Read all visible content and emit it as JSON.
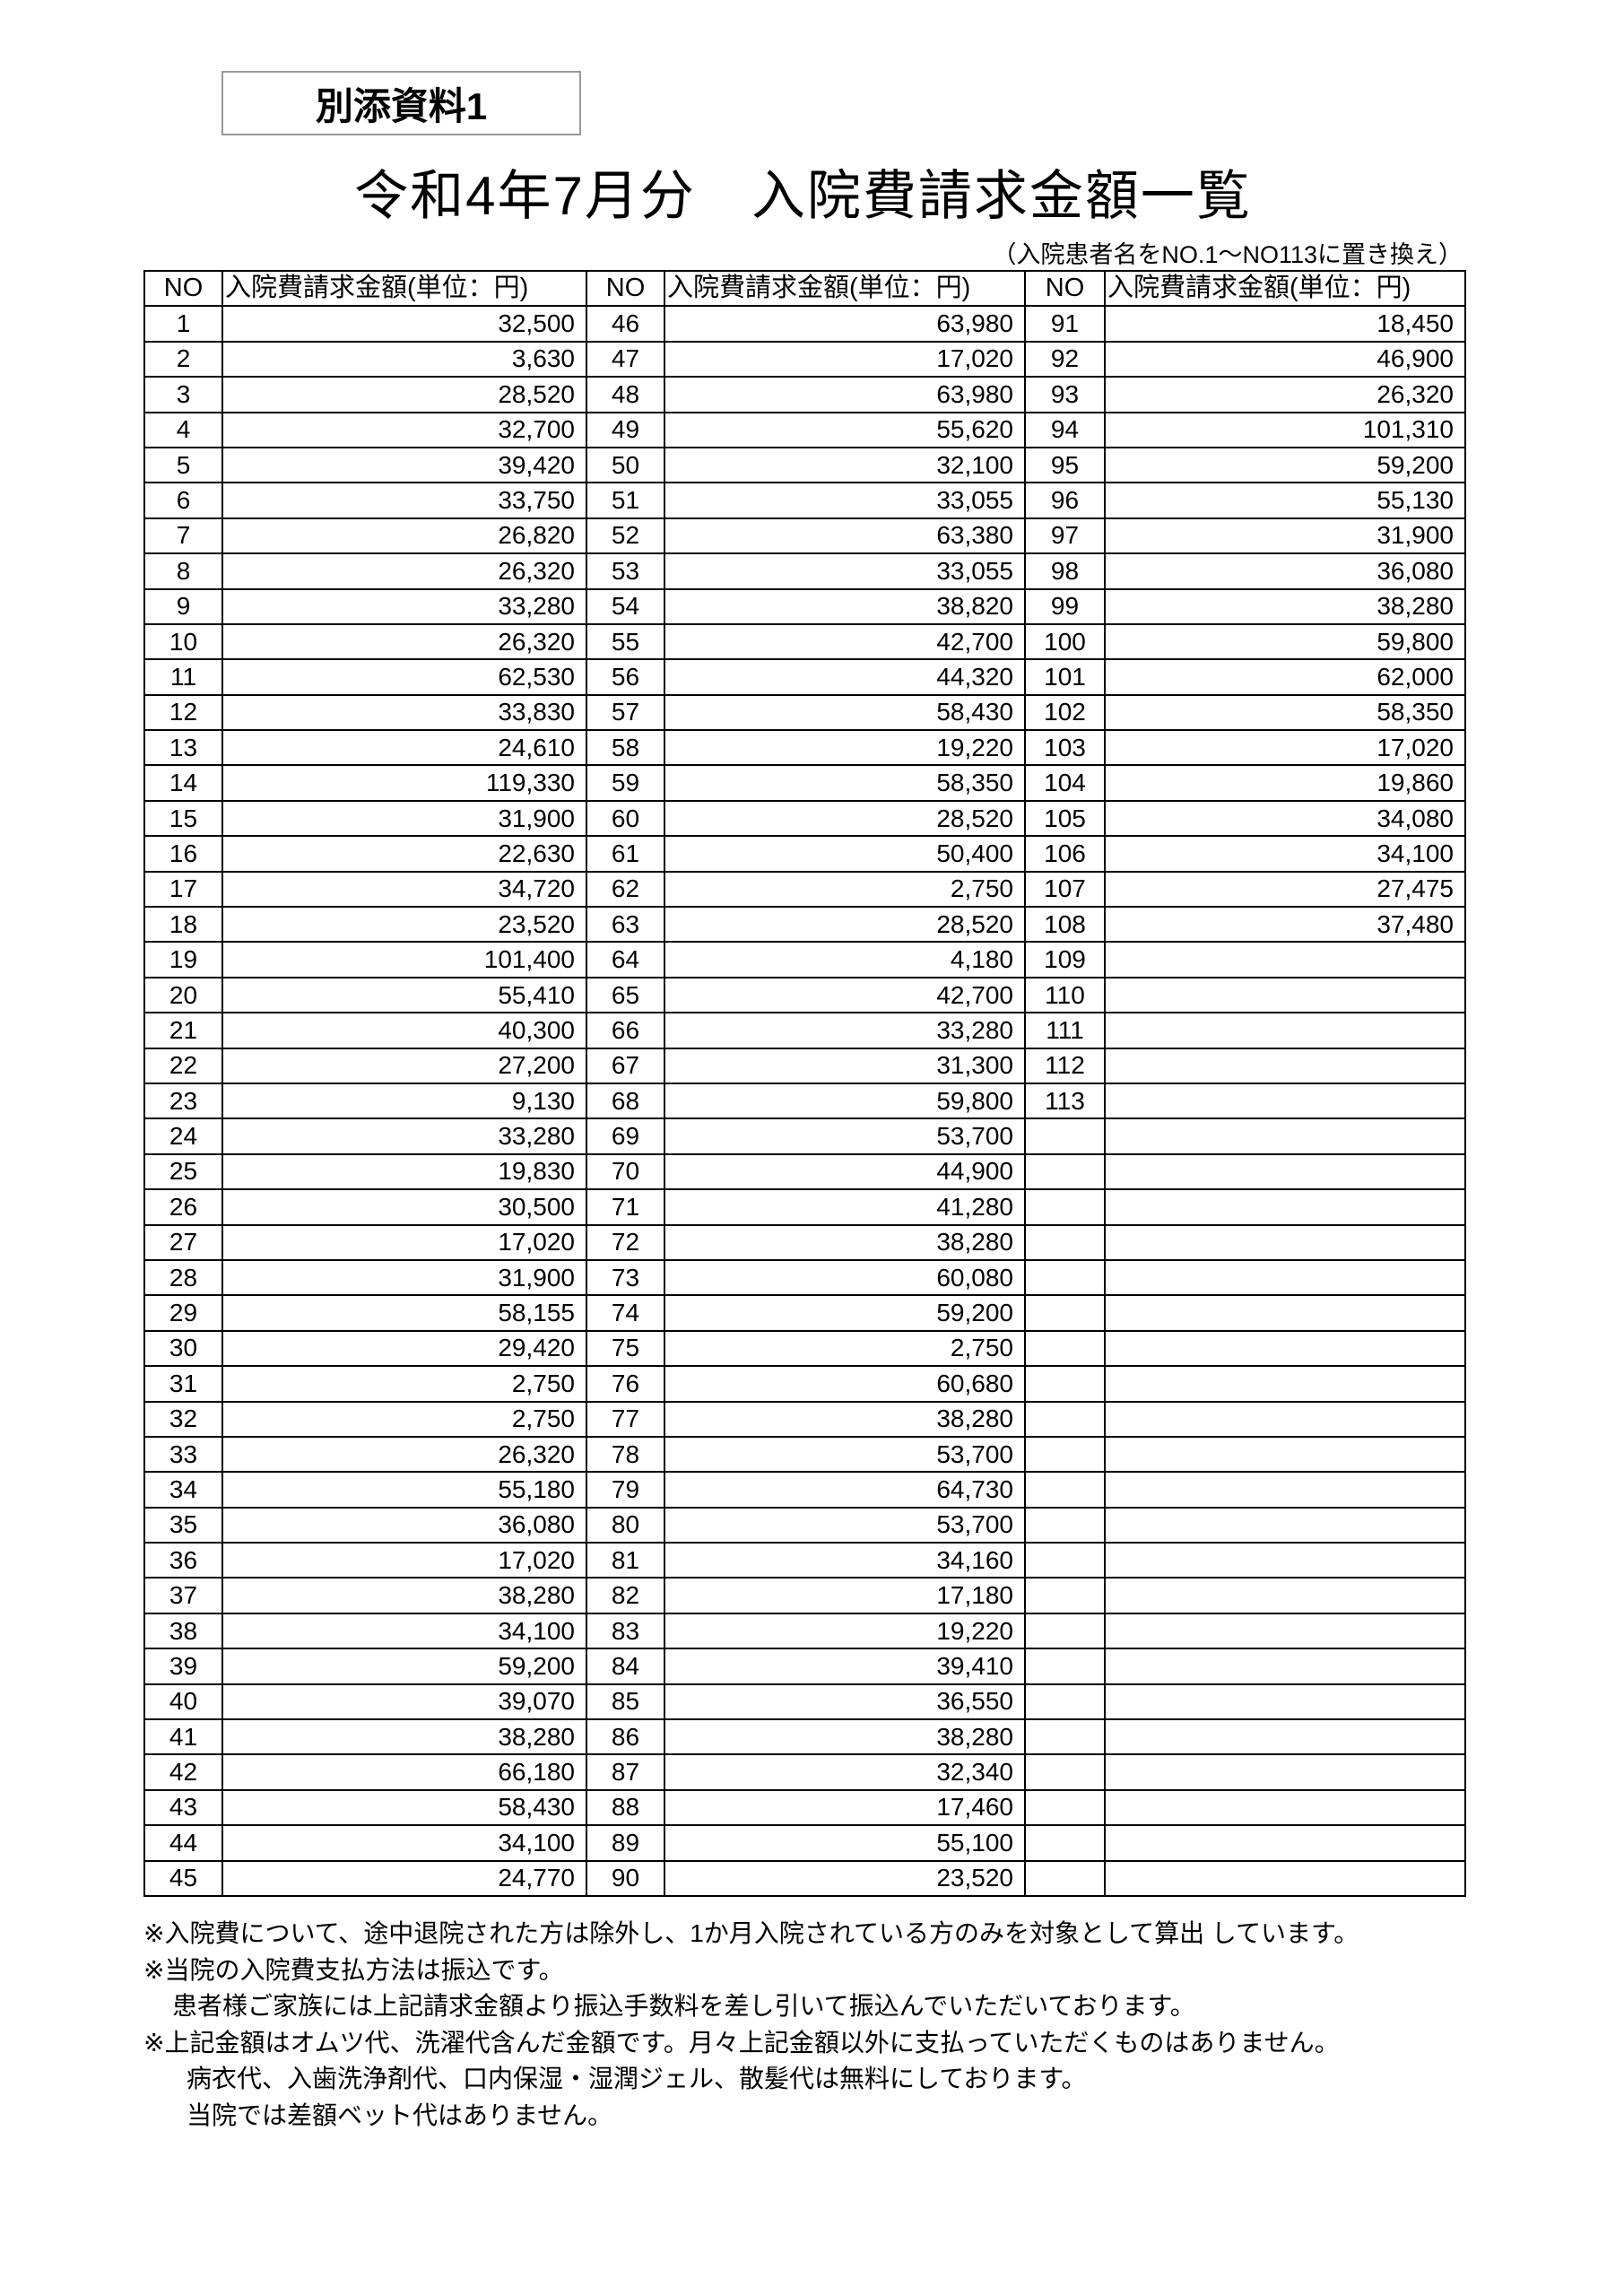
{
  "badge": "別添資料1",
  "title": "令和4年7月分　入院費請求金額一覧",
  "subtitle": "（入院患者名をNO.1～NO113に置き換え）",
  "table": {
    "headers": [
      "NO",
      "入院費請求金額(単位：円)",
      "NO",
      "入院費請求金額(単位：円)",
      "NO",
      "入院費請求金額(単位：円)"
    ],
    "rows": [
      [
        "1",
        "32,500",
        "46",
        "63,980",
        "91",
        "18,450"
      ],
      [
        "2",
        "3,630",
        "47",
        "17,020",
        "92",
        "46,900"
      ],
      [
        "3",
        "28,520",
        "48",
        "63,980",
        "93",
        "26,320"
      ],
      [
        "4",
        "32,700",
        "49",
        "55,620",
        "94",
        "101,310"
      ],
      [
        "5",
        "39,420",
        "50",
        "32,100",
        "95",
        "59,200"
      ],
      [
        "6",
        "33,750",
        "51",
        "33,055",
        "96",
        "55,130"
      ],
      [
        "7",
        "26,820",
        "52",
        "63,380",
        "97",
        "31,900"
      ],
      [
        "8",
        "26,320",
        "53",
        "33,055",
        "98",
        "36,080"
      ],
      [
        "9",
        "33,280",
        "54",
        "38,820",
        "99",
        "38,280"
      ],
      [
        "10",
        "26,320",
        "55",
        "42,700",
        "100",
        "59,800"
      ],
      [
        "11",
        "62,530",
        "56",
        "44,320",
        "101",
        "62,000"
      ],
      [
        "12",
        "33,830",
        "57",
        "58,430",
        "102",
        "58,350"
      ],
      [
        "13",
        "24,610",
        "58",
        "19,220",
        "103",
        "17,020"
      ],
      [
        "14",
        "119,330",
        "59",
        "58,350",
        "104",
        "19,860"
      ],
      [
        "15",
        "31,900",
        "60",
        "28,520",
        "105",
        "34,080"
      ],
      [
        "16",
        "22,630",
        "61",
        "50,400",
        "106",
        "34,100"
      ],
      [
        "17",
        "34,720",
        "62",
        "2,750",
        "107",
        "27,475"
      ],
      [
        "18",
        "23,520",
        "63",
        "28,520",
        "108",
        "37,480"
      ],
      [
        "19",
        "101,400",
        "64",
        "4,180",
        "109",
        ""
      ],
      [
        "20",
        "55,410",
        "65",
        "42,700",
        "110",
        ""
      ],
      [
        "21",
        "40,300",
        "66",
        "33,280",
        "111",
        ""
      ],
      [
        "22",
        "27,200",
        "67",
        "31,300",
        "112",
        ""
      ],
      [
        "23",
        "9,130",
        "68",
        "59,800",
        "113",
        ""
      ],
      [
        "24",
        "33,280",
        "69",
        "53,700",
        "",
        ""
      ],
      [
        "25",
        "19,830",
        "70",
        "44,900",
        "",
        ""
      ],
      [
        "26",
        "30,500",
        "71",
        "41,280",
        "",
        ""
      ],
      [
        "27",
        "17,020",
        "72",
        "38,280",
        "",
        ""
      ],
      [
        "28",
        "31,900",
        "73",
        "60,080",
        "",
        ""
      ],
      [
        "29",
        "58,155",
        "74",
        "59,200",
        "",
        ""
      ],
      [
        "30",
        "29,420",
        "75",
        "2,750",
        "",
        ""
      ],
      [
        "31",
        "2,750",
        "76",
        "60,680",
        "",
        ""
      ],
      [
        "32",
        "2,750",
        "77",
        "38,280",
        "",
        ""
      ],
      [
        "33",
        "26,320",
        "78",
        "53,700",
        "",
        ""
      ],
      [
        "34",
        "55,180",
        "79",
        "64,730",
        "",
        ""
      ],
      [
        "35",
        "36,080",
        "80",
        "53,700",
        "",
        ""
      ],
      [
        "36",
        "17,020",
        "81",
        "34,160",
        "",
        ""
      ],
      [
        "37",
        "38,280",
        "82",
        "17,180",
        "",
        ""
      ],
      [
        "38",
        "34,100",
        "83",
        "19,220",
        "",
        ""
      ],
      [
        "39",
        "59,200",
        "84",
        "39,410",
        "",
        ""
      ],
      [
        "40",
        "39,070",
        "85",
        "36,550",
        "",
        ""
      ],
      [
        "41",
        "38,280",
        "86",
        "38,280",
        "",
        ""
      ],
      [
        "42",
        "66,180",
        "87",
        "32,340",
        "",
        ""
      ],
      [
        "43",
        "58,430",
        "88",
        "17,460",
        "",
        ""
      ],
      [
        "44",
        "34,100",
        "89",
        "55,100",
        "",
        ""
      ],
      [
        "45",
        "24,770",
        "90",
        "23,520",
        "",
        ""
      ]
    ]
  },
  "notes": [
    "※入院費について、途中退院された方は除外し、1か月入院されている方のみを対象として算出 しています。",
    "※当院の入院費支払方法は振込です。",
    "患者様ご家族には上記請求金額より振込手数料を差し引いて振込んでいただいております。",
    "※上記金額はオムツ代、洗濯代含んだ金額です。月々上記金額以外に支払っていただくものはありません。",
    "病衣代、入歯洗浄剤代、口内保湿・湿潤ジェル、散髪代は無料にしております。",
    "当院では差額ベット代はありません。"
  ]
}
